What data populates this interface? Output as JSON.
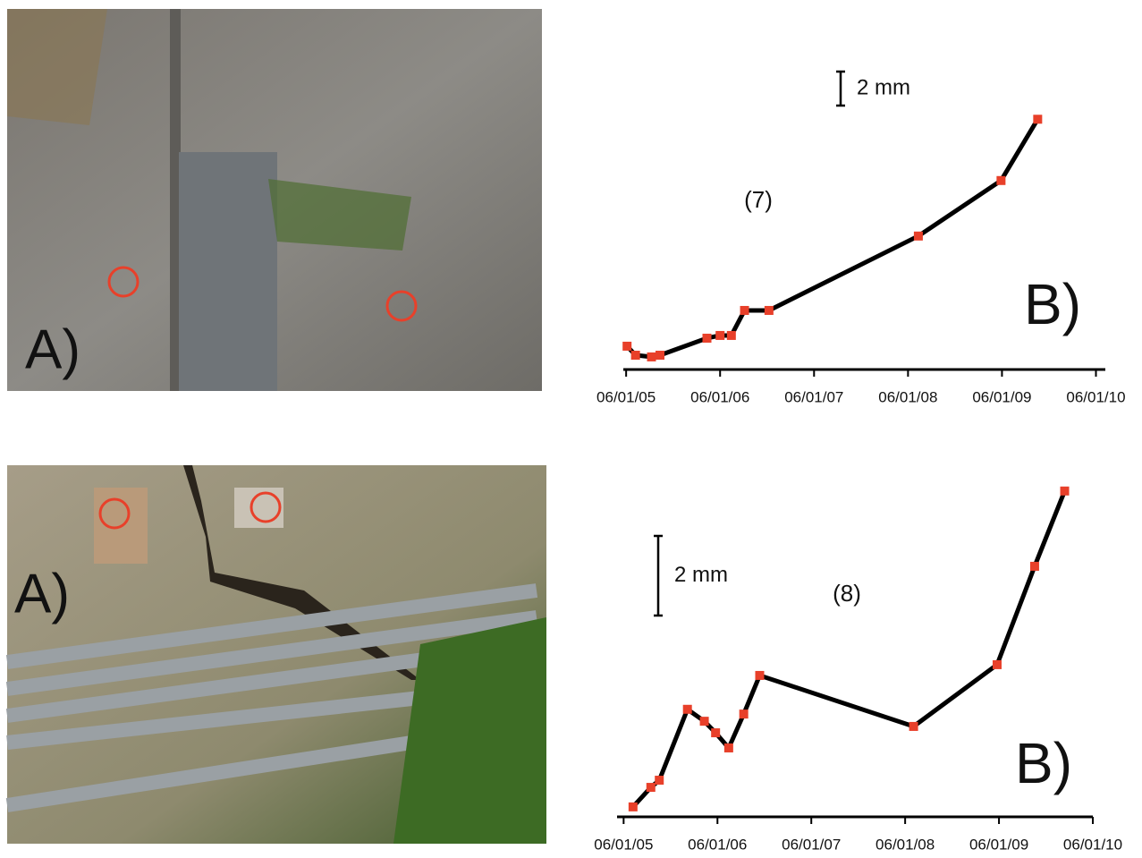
{
  "photos": [
    {
      "label": "A)"
    },
    {
      "label": "A)"
    }
  ],
  "chart_data": [
    {
      "type": "line",
      "label": "B)",
      "annotation": "(7)",
      "scale_bar": {
        "value": 2,
        "label": "2 mm"
      },
      "line_color": "#000000",
      "marker_color": "#e8402a",
      "x": [
        2005.01,
        2005.1,
        2005.27,
        2005.36,
        2005.86,
        2006.0,
        2006.12,
        2006.26,
        2006.52,
        2008.11,
        2008.99,
        2009.38
      ],
      "values": [
        1.37,
        0.84,
        0.74,
        0.84,
        1.84,
        2.0,
        2.0,
        3.47,
        3.47,
        7.84,
        11.1,
        14.7
      ],
      "xlim": [
        2004.97,
        2010.1
      ],
      "ylim": [
        0,
        17.5
      ],
      "xticks": [
        {
          "value": 2005,
          "label": "06/01/05"
        },
        {
          "value": 2006,
          "label": "06/01/06"
        },
        {
          "value": 2007,
          "label": "06/01/07"
        },
        {
          "value": 2008,
          "label": "06/01/08"
        },
        {
          "value": 2009,
          "label": "06/01/09"
        },
        {
          "value": 2010,
          "label": "06/01/10"
        }
      ]
    },
    {
      "type": "line",
      "label": "B)",
      "annotation": "(8)",
      "scale_bar": {
        "value": 2,
        "label": "2 mm"
      },
      "line_color": "#000000",
      "marker_color": "#e8402a",
      "x": [
        2005.1,
        2005.29,
        2005.38,
        2005.68,
        2005.86,
        2005.98,
        2006.12,
        2006.28,
        2006.45,
        2008.09,
        2008.98,
        2009.38,
        2009.7
      ],
      "values": [
        0.25,
        0.74,
        0.92,
        2.7,
        2.4,
        2.11,
        1.73,
        2.58,
        3.55,
        2.27,
        3.82,
        6.29,
        8.18
      ],
      "xlim": [
        2004.93,
        2010.0
      ],
      "ylim": [
        0,
        8.4
      ],
      "xticks": [
        {
          "value": 2005,
          "label": "06/01/05"
        },
        {
          "value": 2006,
          "label": "06/01/06"
        },
        {
          "value": 2007,
          "label": "06/01/07"
        },
        {
          "value": 2008,
          "label": "06/01/08"
        },
        {
          "value": 2009,
          "label": "06/01/09"
        },
        {
          "value": 2010,
          "label": "06/01/10"
        }
      ]
    }
  ]
}
